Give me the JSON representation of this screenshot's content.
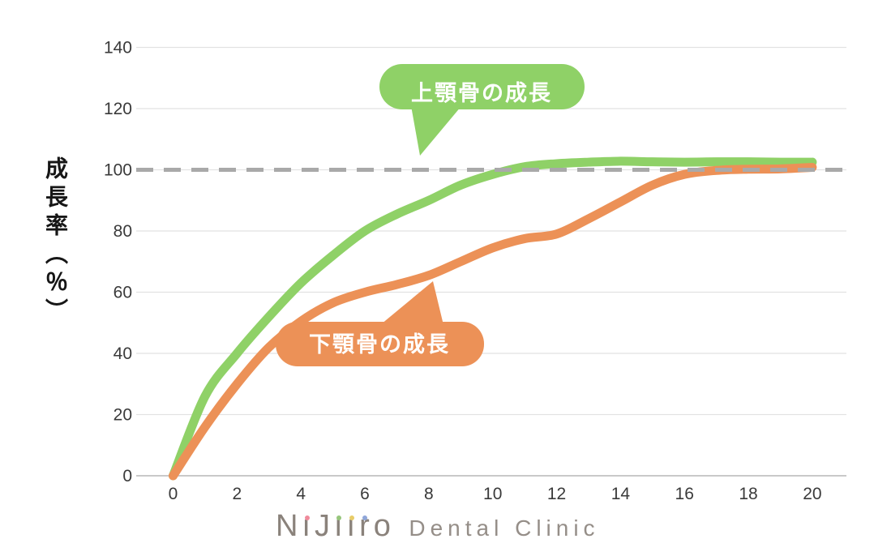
{
  "chart": {
    "y_axis_title": "成長率（％）",
    "labels": {
      "maxilla": "上顎骨の成長",
      "mandible": "下顎骨の成長"
    }
  },
  "chart_data": {
    "type": "line",
    "title": "",
    "xlabel": "",
    "ylabel": "成長率（％）",
    "xlim": [
      0,
      20
    ],
    "ylim": [
      0,
      140
    ],
    "grid": true,
    "x_ticks": [
      0,
      2,
      4,
      6,
      8,
      10,
      12,
      14,
      16,
      18,
      20
    ],
    "y_ticks": [
      0,
      20,
      40,
      60,
      80,
      100,
      120,
      140
    ],
    "reference_line": {
      "y": 100,
      "style": "dashed",
      "color": "#a9a9a9"
    },
    "x": [
      0,
      1,
      2,
      3,
      4,
      5,
      6,
      7,
      8,
      9,
      10,
      11,
      12,
      13,
      14,
      15,
      16,
      17,
      18,
      19,
      20
    ],
    "series": [
      {
        "name": "上顎骨の成長",
        "color": "#8fd167",
        "values": [
          0,
          26,
          40,
          52,
          63,
          72,
          80,
          85.5,
          90,
          95,
          98.5,
          101,
          102,
          102.5,
          102.8,
          102.6,
          102.5,
          102.6,
          102.6,
          102.5,
          102.5
        ]
      },
      {
        "name": "下顎骨の成長",
        "color": "#ec9157",
        "values": [
          0,
          16,
          30,
          42,
          50.5,
          56.5,
          60,
          62.5,
          65.5,
          70,
          74.5,
          77.5,
          79,
          84,
          89.5,
          95,
          98.5,
          99.8,
          100.2,
          100.3,
          100.8
        ]
      }
    ],
    "annotations": [
      {
        "text": "上顎骨の成長",
        "points_to": "maxilla curve near 100% at age 10"
      },
      {
        "text": "下顎骨の成長",
        "points_to": "mandible curve near 65% at age 8"
      }
    ]
  },
  "colors": {
    "maxilla_green": "#8fd167",
    "mandible_orange": "#ec9157",
    "dashed_gray": "#a9a9a9",
    "gridline": "#e2e2e2",
    "axis": "#c9c9c9",
    "tick_text": "#3a3a3a"
  },
  "footer": {
    "logo": {
      "brand": "NiJiiro",
      "suffix": "Dental Clinic",
      "letters": [
        {
          "ch": "N"
        },
        {
          "ch": "i",
          "dot": "#f08a9b"
        },
        {
          "ch": "J"
        },
        {
          "ch": "i",
          "dot": "#97c67c"
        },
        {
          "ch": "i",
          "dot": "#e8cc68"
        },
        {
          "ch": "r",
          "dot": "#8fa6d9"
        },
        {
          "ch": "o"
        }
      ]
    }
  }
}
